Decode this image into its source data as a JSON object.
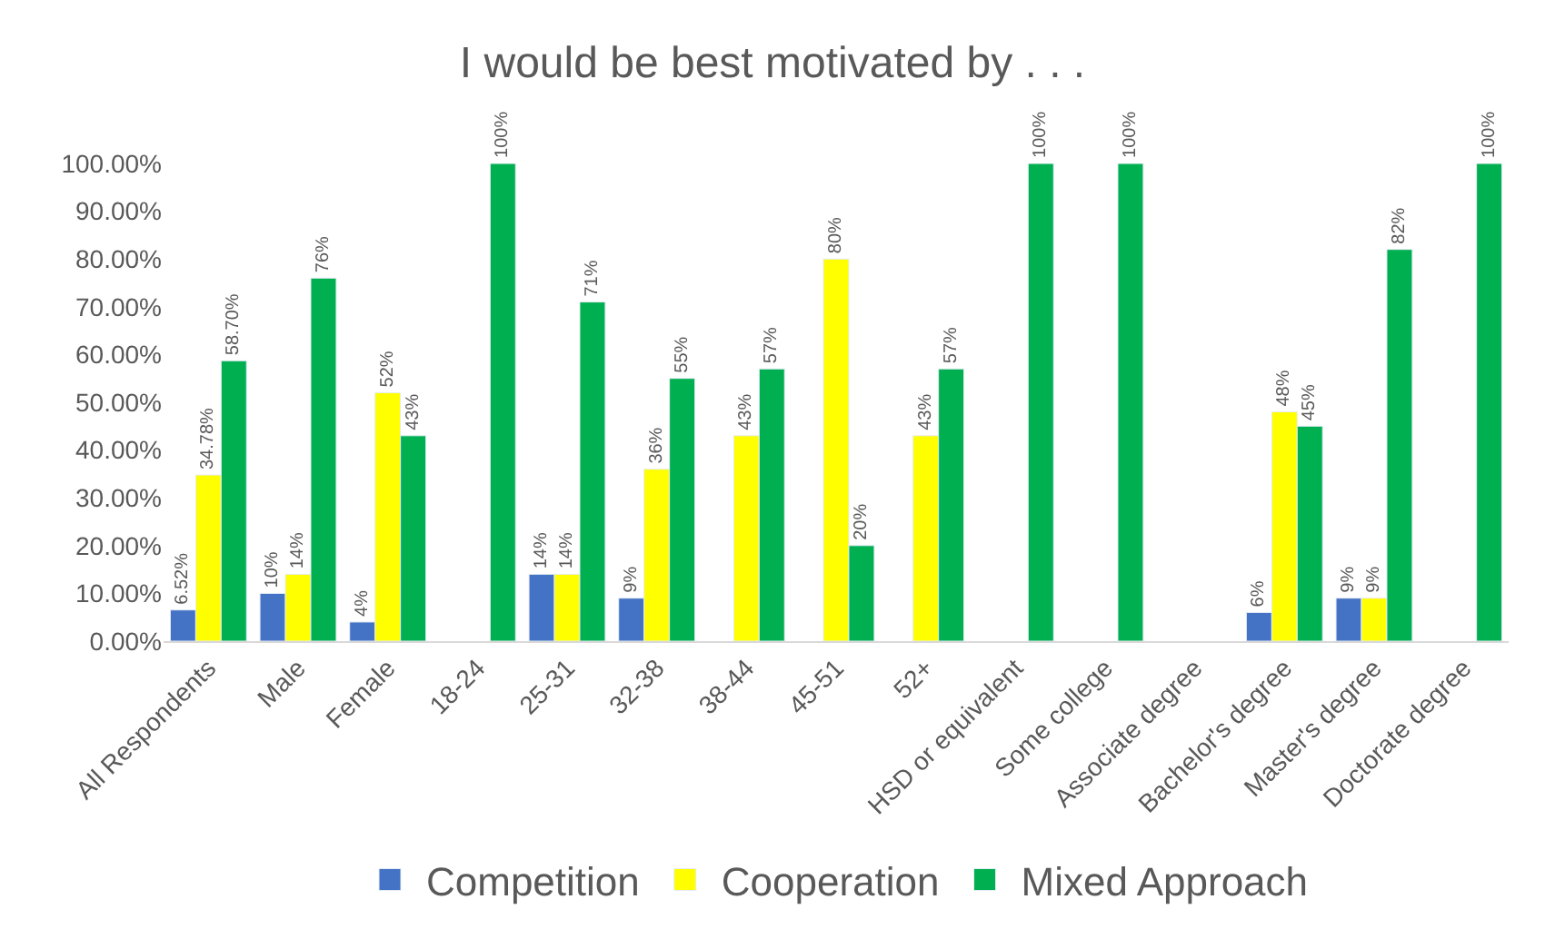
{
  "chart_data": {
    "type": "bar",
    "title": "I would be best motivated by . . .",
    "categories": [
      "All Respondents",
      "Male",
      "Female",
      "18-24",
      "25-31",
      "32-38",
      "38-44",
      "45-51",
      "52+",
      "HSD or equivalent",
      "Some college",
      "Associate degree",
      "Bachelor's degree",
      "Master's degree",
      "Doctorate degree"
    ],
    "series": [
      {
        "name": "Competition",
        "color": "#4472c4",
        "values": [
          6.52,
          10,
          4,
          null,
          14,
          9,
          null,
          null,
          null,
          null,
          null,
          null,
          6,
          9,
          null
        ],
        "value_labels": [
          "6.52%",
          "10%",
          "4%",
          null,
          "14%",
          "9%",
          null,
          null,
          null,
          null,
          null,
          null,
          "6%",
          "9%",
          null
        ]
      },
      {
        "name": "Cooperation",
        "color": "#ffff00",
        "values": [
          34.78,
          14,
          52,
          null,
          14,
          36,
          43,
          80,
          43,
          null,
          null,
          null,
          48,
          9,
          null
        ],
        "value_labels": [
          "34.78%",
          "14%",
          "52%",
          null,
          "14%",
          "36%",
          "43%",
          "80%",
          "43%",
          null,
          null,
          null,
          "48%",
          "9%",
          null
        ]
      },
      {
        "name": "Mixed Approach",
        "color": "#00b050",
        "values": [
          58.7,
          76,
          43,
          100,
          71,
          55,
          57,
          20,
          57,
          100,
          100,
          null,
          45,
          82,
          100
        ],
        "value_labels": [
          "58.70%",
          "76%",
          "43%",
          "100%",
          "71%",
          "55%",
          "57%",
          "20%",
          "57%",
          "100%",
          "100%",
          null,
          "45%",
          "82%",
          "100%"
        ]
      }
    ],
    "ylim": [
      0,
      100
    ],
    "yticks": [
      {
        "value": 0,
        "label": "0.00%"
      },
      {
        "value": 10,
        "label": "10.00%"
      },
      {
        "value": 20,
        "label": "20.00%"
      },
      {
        "value": 30,
        "label": "30.00%"
      },
      {
        "value": 40,
        "label": "40.00%"
      },
      {
        "value": 50,
        "label": "50.00%"
      },
      {
        "value": 60,
        "label": "60.00%"
      },
      {
        "value": 70,
        "label": "70.00%"
      },
      {
        "value": 80,
        "label": "80.00%"
      },
      {
        "value": 90,
        "label": "90.00%"
      },
      {
        "value": 100,
        "label": "100.00%"
      }
    ],
    "grid": false,
    "legend": "bottom"
  }
}
